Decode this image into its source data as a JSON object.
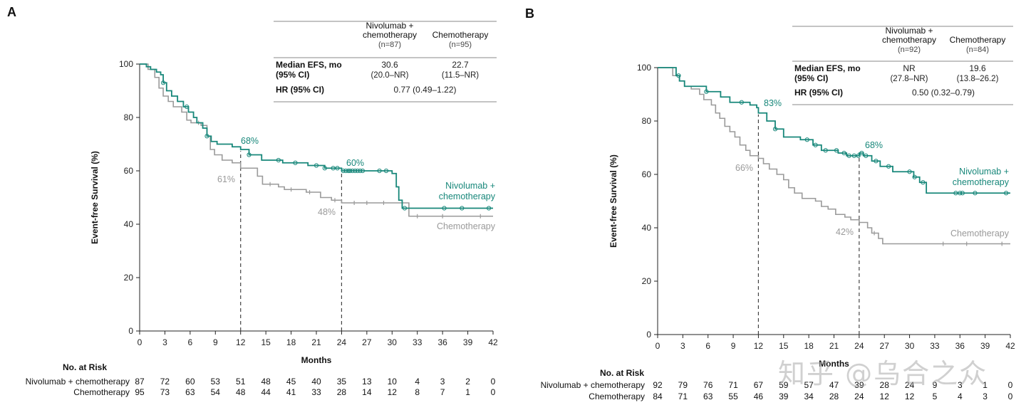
{
  "watermark": "知乎 @乌合之众",
  "colors": {
    "nivo": "#17877a",
    "chemo": "#9a9a9a",
    "axis": "#222222",
    "dash": "#444444"
  },
  "chart_data": [
    {
      "type": "line",
      "panel_label": "A",
      "ylabel": "Event-free Survival (%)",
      "xlabel": "Months",
      "xlim": [
        0,
        42
      ],
      "ylim": [
        0,
        100
      ],
      "x_ticks": [
        0,
        3,
        6,
        9,
        12,
        15,
        18,
        21,
        24,
        27,
        30,
        33,
        36,
        39,
        42
      ],
      "y_ticks": [
        0,
        20,
        40,
        60,
        80,
        100
      ],
      "series": [
        {
          "name": "Nivolumab + chemotherapy",
          "legend": [
            "Nivolumab +",
            "chemotherapy"
          ],
          "steps": [
            [
              0,
              100
            ],
            [
              0.8,
              99
            ],
            [
              1.3,
              98
            ],
            [
              2,
              97
            ],
            [
              2.5,
              96
            ],
            [
              2.8,
              93
            ],
            [
              3.2,
              90
            ],
            [
              3.8,
              88
            ],
            [
              4.5,
              86
            ],
            [
              5.2,
              84
            ],
            [
              5.8,
              82
            ],
            [
              6.4,
              80
            ],
            [
              6.8,
              78
            ],
            [
              7.5,
              76
            ],
            [
              8,
              73
            ],
            [
              8.5,
              71
            ],
            [
              9.2,
              70
            ],
            [
              11,
              69
            ],
            [
              12,
              68
            ],
            [
              13,
              66
            ],
            [
              14.5,
              64
            ],
            [
              17,
              63
            ],
            [
              20,
              62
            ],
            [
              22,
              61
            ],
            [
              24,
              60
            ],
            [
              30,
              59
            ],
            [
              30.5,
              54
            ],
            [
              30.8,
              49
            ],
            [
              31.2,
              46
            ],
            [
              42,
              46
            ]
          ],
          "censor": [
            2.8,
            5.6,
            8,
            13,
            16.5,
            18.5,
            21,
            22,
            23,
            23.5,
            24.2,
            24.5,
            24.8,
            25,
            25.3,
            25.6,
            25.9,
            26.2,
            26.5,
            28.5,
            29.3,
            31.5,
            36.2,
            38.3,
            41.5
          ]
        },
        {
          "name": "Chemotherapy",
          "legend": [
            "Chemotherapy"
          ],
          "steps": [
            [
              0,
              100
            ],
            [
              1,
              98
            ],
            [
              1.8,
              95
            ],
            [
              2.3,
              91
            ],
            [
              2.8,
              88
            ],
            [
              3.4,
              86
            ],
            [
              4,
              84
            ],
            [
              5,
              82
            ],
            [
              5.6,
              79
            ],
            [
              6.1,
              78
            ],
            [
              7.3,
              77
            ],
            [
              8,
              73
            ],
            [
              8.4,
              68
            ],
            [
              8.9,
              66
            ],
            [
              9.8,
              64
            ],
            [
              11,
              63
            ],
            [
              12,
              61
            ],
            [
              14,
              58
            ],
            [
              14.6,
              55
            ],
            [
              16.5,
              54
            ],
            [
              17.2,
              53
            ],
            [
              19.8,
              52
            ],
            [
              21.5,
              50
            ],
            [
              22.8,
              49
            ],
            [
              24,
              48
            ],
            [
              32,
              43
            ],
            [
              42,
              43
            ]
          ],
          "censor": [
            7,
            15.5,
            18,
            20.2,
            23.2,
            25.5,
            27,
            29,
            33,
            36,
            40.5
          ]
        }
      ],
      "annotations": [
        {
          "text": "68%",
          "x": 12,
          "y": 68,
          "series": "Nivolumab + chemotherapy"
        },
        {
          "text": "61%",
          "x": 12,
          "y": 61,
          "series": "Chemotherapy"
        },
        {
          "text": "60%",
          "x": 24,
          "y": 60,
          "series": "Nivolumab + chemotherapy"
        },
        {
          "text": "48%",
          "x": 24,
          "y": 48,
          "series": "Chemotherapy"
        }
      ],
      "ref_lines_x": [
        12,
        24
      ],
      "table": {
        "headers": [
          [
            "Nivolumab +",
            "chemotherapy",
            "(n=87)"
          ],
          [
            "Chemotherapy",
            "(n=95)"
          ]
        ],
        "median_label": [
          "Median EFS, mo",
          "(95% CI)"
        ],
        "median_values": [
          [
            "30.6",
            "(20.0–NR)"
          ],
          [
            "22.7",
            "(11.5–NR)"
          ]
        ],
        "hr_label": "HR (95% CI)",
        "hr_value": "0.77 (0.49–1.22)"
      },
      "risk_table": {
        "title": "No. at Risk",
        "rows": [
          {
            "label": "Nivolumab + chemotherapy",
            "values": [
              "87",
              "72",
              "60",
              "53",
              "51",
              "48",
              "45",
              "40",
              "35",
              "13",
              "10",
              "4",
              "3",
              "2",
              "0"
            ]
          },
          {
            "label": "Chemotherapy",
            "values": [
              "95",
              "73",
              "63",
              "54",
              "48",
              "44",
              "41",
              "33",
              "28",
              "14",
              "12",
              "8",
              "7",
              "1",
              "0"
            ]
          }
        ]
      }
    },
    {
      "type": "line",
      "panel_label": "B",
      "ylabel": "Event-free Survival (%)",
      "xlabel": "Months",
      "xlim": [
        0,
        42
      ],
      "ylim": [
        0,
        100
      ],
      "x_ticks": [
        0,
        3,
        6,
        9,
        12,
        15,
        18,
        21,
        24,
        27,
        30,
        33,
        36,
        39,
        42
      ],
      "y_ticks": [
        0,
        20,
        40,
        60,
        80,
        100
      ],
      "series": [
        {
          "name": "Nivolumab + chemotherapy",
          "legend": [
            "Nivolumab +",
            "chemotherapy"
          ],
          "steps": [
            [
              0,
              100
            ],
            [
              2.2,
              97
            ],
            [
              2.6,
              95
            ],
            [
              3.2,
              93
            ],
            [
              5.8,
              91
            ],
            [
              7.5,
              89
            ],
            [
              8.6,
              87
            ],
            [
              11,
              86
            ],
            [
              11.8,
              85
            ],
            [
              12,
              83
            ],
            [
              13,
              80
            ],
            [
              14,
              77
            ],
            [
              15,
              74
            ],
            [
              17,
              73
            ],
            [
              18.5,
              71
            ],
            [
              19.5,
              69
            ],
            [
              21.5,
              68
            ],
            [
              22.5,
              67
            ],
            [
              24,
              68
            ],
            [
              24.5,
              67
            ],
            [
              25.5,
              65
            ],
            [
              26.5,
              63
            ],
            [
              28,
              61
            ],
            [
              30.5,
              59
            ],
            [
              31.2,
              57
            ],
            [
              32,
              53
            ],
            [
              42,
              53
            ]
          ],
          "censor": [
            2.5,
            5.8,
            10,
            14,
            17.8,
            18.8,
            20,
            21.3,
            22.2,
            22.8,
            23.4,
            23.9,
            24.3,
            24.8,
            26,
            27.5,
            30,
            30.6,
            31.6,
            35.5,
            36,
            36.3,
            37.8,
            41.5
          ]
        },
        {
          "name": "Chemotherapy",
          "legend": [
            "Chemotherapy"
          ],
          "steps": [
            [
              0,
              100
            ],
            [
              1.8,
              97
            ],
            [
              2.6,
              95
            ],
            [
              3.2,
              93
            ],
            [
              4,
              92
            ],
            [
              5,
              90
            ],
            [
              5.5,
              88
            ],
            [
              6.4,
              86
            ],
            [
              6.9,
              83
            ],
            [
              7.4,
              81
            ],
            [
              8,
              78
            ],
            [
              8.6,
              76
            ],
            [
              9.2,
              74
            ],
            [
              9.8,
              71
            ],
            [
              10.5,
              69
            ],
            [
              11,
              67
            ],
            [
              12,
              66
            ],
            [
              12.6,
              64
            ],
            [
              13.3,
              62
            ],
            [
              14.2,
              60
            ],
            [
              15,
              58
            ],
            [
              15.6,
              55
            ],
            [
              16.3,
              53
            ],
            [
              17.2,
              51
            ],
            [
              18.8,
              50
            ],
            [
              19.5,
              48
            ],
            [
              20.3,
              47
            ],
            [
              21.2,
              45
            ],
            [
              22.3,
              44
            ],
            [
              23,
              43
            ],
            [
              24,
              42
            ],
            [
              25,
              40
            ],
            [
              25.5,
              38
            ],
            [
              26.3,
              36
            ],
            [
              26.8,
              34
            ],
            [
              42,
              34
            ]
          ],
          "censor": [
            25.8,
            34,
            36.8,
            41
          ]
        }
      ],
      "annotations": [
        {
          "text": "83%",
          "x": 12,
          "y": 83,
          "series": "Nivolumab + chemotherapy"
        },
        {
          "text": "66%",
          "x": 12,
          "y": 66,
          "series": "Chemotherapy"
        },
        {
          "text": "68%",
          "x": 24,
          "y": 68,
          "series": "Nivolumab + chemotherapy"
        },
        {
          "text": "42%",
          "x": 24,
          "y": 42,
          "series": "Chemotherapy"
        }
      ],
      "ref_lines_x": [
        12,
        24
      ],
      "table": {
        "headers": [
          [
            "Nivolumab +",
            "chemotherapy",
            "(n=92)"
          ],
          [
            "Chemotherapy",
            "(n=84)"
          ]
        ],
        "median_label": [
          "Median EFS, mo",
          "(95% CI)"
        ],
        "median_values": [
          [
            "NR",
            "(27.8–NR)"
          ],
          [
            "19.6",
            "(13.8–26.2)"
          ]
        ],
        "hr_label": "HR (95% CI)",
        "hr_value": "0.50 (0.32–0.79)"
      },
      "risk_table": {
        "title": "No. at Risk",
        "rows": [
          {
            "label": "Nivolumab + chemotherapy",
            "values": [
              "92",
              "79",
              "76",
              "71",
              "67",
              "59",
              "57",
              "47",
              "39",
              "28",
              "24",
              "9",
              "3",
              "1",
              "0"
            ]
          },
          {
            "label": "Chemotherapy",
            "values": [
              "84",
              "71",
              "63",
              "55",
              "46",
              "39",
              "34",
              "28",
              "24",
              "12",
              "12",
              "5",
              "4",
              "3",
              "0"
            ]
          }
        ]
      }
    }
  ]
}
